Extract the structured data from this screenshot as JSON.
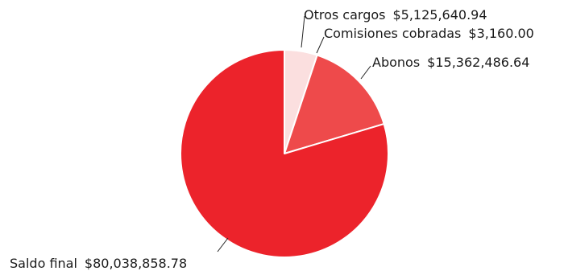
{
  "chart_data": {
    "type": "pie",
    "slices": [
      {
        "label": "Otros cargos",
        "value_text": "$5,125,640.94",
        "value": 5125640.94,
        "color": "#fbdfdf"
      },
      {
        "label": "Comisiones cobradas",
        "value_text": "$3,160.00",
        "value": 3160.0,
        "color": "#f3a3a5"
      },
      {
        "label": "Abonos",
        "value_text": "$15,362,486.64",
        "value": 15362486.64,
        "color": "#ee4a4b"
      },
      {
        "label": "Saldo final",
        "value_text": "$80,038,858.78",
        "value": 80038858.78,
        "color": "#ec232b"
      }
    ]
  }
}
